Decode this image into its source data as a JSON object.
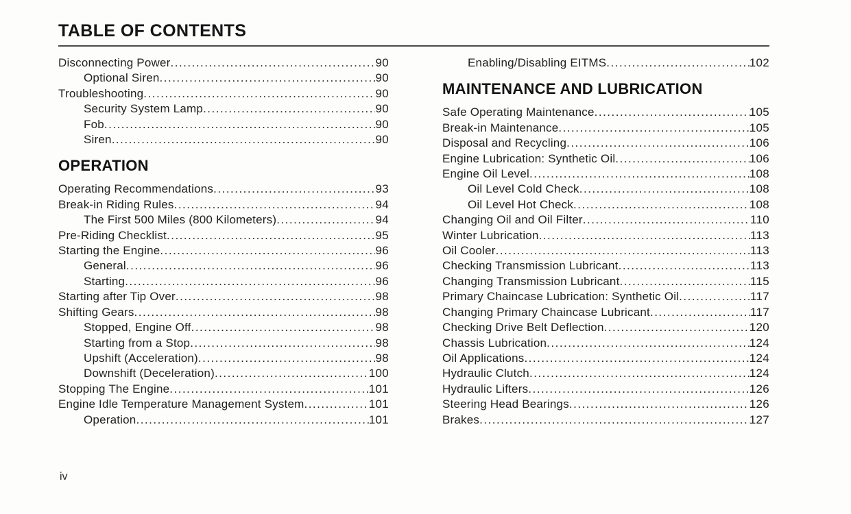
{
  "title": "TABLE OF CONTENTS",
  "page_footer": {
    "page_number": "iv"
  },
  "colors": {
    "ink": "#1f1f1f",
    "background": "#fdfdfc",
    "rule": "#4a4a4a"
  },
  "toc": {
    "columns": [
      {
        "blocks": [
          {
            "type": "entries",
            "items": [
              {
                "label": "Disconnecting Power",
                "page": "90",
                "indent": 0
              },
              {
                "label": "Optional Siren",
                "page": "90",
                "indent": 1
              },
              {
                "label": "Troubleshooting",
                "page": "90",
                "indent": 0
              },
              {
                "label": "Security System Lamp",
                "page": "90",
                "indent": 1
              },
              {
                "label": "Fob",
                "page": "90",
                "indent": 1
              },
              {
                "label": "Siren",
                "page": "90",
                "indent": 1
              }
            ]
          },
          {
            "type": "heading",
            "text": "OPERATION"
          },
          {
            "type": "entries",
            "items": [
              {
                "label": "Operating Recommendations",
                "page": "93",
                "indent": 0
              },
              {
                "label": "Break-in Riding Rules",
                "page": "94",
                "indent": 0
              },
              {
                "label": "The First 500 Miles (800 Kilometers)",
                "page": "94",
                "indent": 1
              },
              {
                "label": "Pre-Riding Checklist",
                "page": "95",
                "indent": 0
              },
              {
                "label": "Starting the Engine",
                "page": "96",
                "indent": 0
              },
              {
                "label": "General",
                "page": "96",
                "indent": 1
              },
              {
                "label": "Starting",
                "page": "96",
                "indent": 1
              },
              {
                "label": "Starting after Tip Over",
                "page": "98",
                "indent": 0
              },
              {
                "label": "Shifting Gears",
                "page": "98",
                "indent": 0
              },
              {
                "label": "Stopped, Engine Off",
                "page": "98",
                "indent": 1
              },
              {
                "label": "Starting from a Stop",
                "page": "98",
                "indent": 1
              },
              {
                "label": "Upshift (Acceleration)",
                "page": "98",
                "indent": 1
              },
              {
                "label": "Downshift (Deceleration)",
                "page": "100",
                "indent": 1
              },
              {
                "label": "Stopping The Engine",
                "page": "101",
                "indent": 0
              },
              {
                "label": "Engine Idle Temperature Management System",
                "page": "101",
                "indent": 0
              },
              {
                "label": "Operation",
                "page": "101",
                "indent": 1
              }
            ]
          }
        ]
      },
      {
        "blocks": [
          {
            "type": "entries",
            "items": [
              {
                "label": "Enabling/Disabling EITMS",
                "page": "102",
                "indent": 1
              }
            ]
          },
          {
            "type": "heading",
            "text": "MAINTENANCE AND LUBRICATION"
          },
          {
            "type": "entries",
            "items": [
              {
                "label": "Safe Operating Maintenance",
                "page": "105",
                "indent": 0
              },
              {
                "label": "Break-in Maintenance",
                "page": "105",
                "indent": 0
              },
              {
                "label": "Disposal and Recycling",
                "page": "106",
                "indent": 0
              },
              {
                "label": "Engine Lubrication: Synthetic Oil",
                "page": "106",
                "indent": 0
              },
              {
                "label": "Engine Oil Level",
                "page": "108",
                "indent": 0
              },
              {
                "label": "Oil Level Cold Check",
                "page": "108",
                "indent": 1
              },
              {
                "label": "Oil Level Hot Check",
                "page": "108",
                "indent": 1
              },
              {
                "label": "Changing Oil and Oil Filter",
                "page": "110",
                "indent": 0
              },
              {
                "label": "Winter Lubrication",
                "page": "113",
                "indent": 0
              },
              {
                "label": "Oil Cooler",
                "page": "113",
                "indent": 0
              },
              {
                "label": "Checking Transmission Lubricant",
                "page": "113",
                "indent": 0
              },
              {
                "label": "Changing Transmission Lubricant",
                "page": "115",
                "indent": 0
              },
              {
                "label": "Primary Chaincase Lubrication: Synthetic Oil",
                "page": "117",
                "indent": 0
              },
              {
                "label": "Changing Primary Chaincase Lubricant",
                "page": "117",
                "indent": 0
              },
              {
                "label": "Checking Drive Belt Deflection",
                "page": "120",
                "indent": 0
              },
              {
                "label": "Chassis Lubrication",
                "page": "124",
                "indent": 0
              },
              {
                "label": "Oil Applications",
                "page": "124",
                "indent": 0
              },
              {
                "label": "Hydraulic Clutch",
                "page": "124",
                "indent": 0
              },
              {
                "label": "Hydraulic Lifters",
                "page": "126",
                "indent": 0
              },
              {
                "label": "Steering Head Bearings",
                "page": "126",
                "indent": 0
              },
              {
                "label": "Brakes",
                "page": "127",
                "indent": 0
              }
            ]
          }
        ]
      }
    ]
  }
}
